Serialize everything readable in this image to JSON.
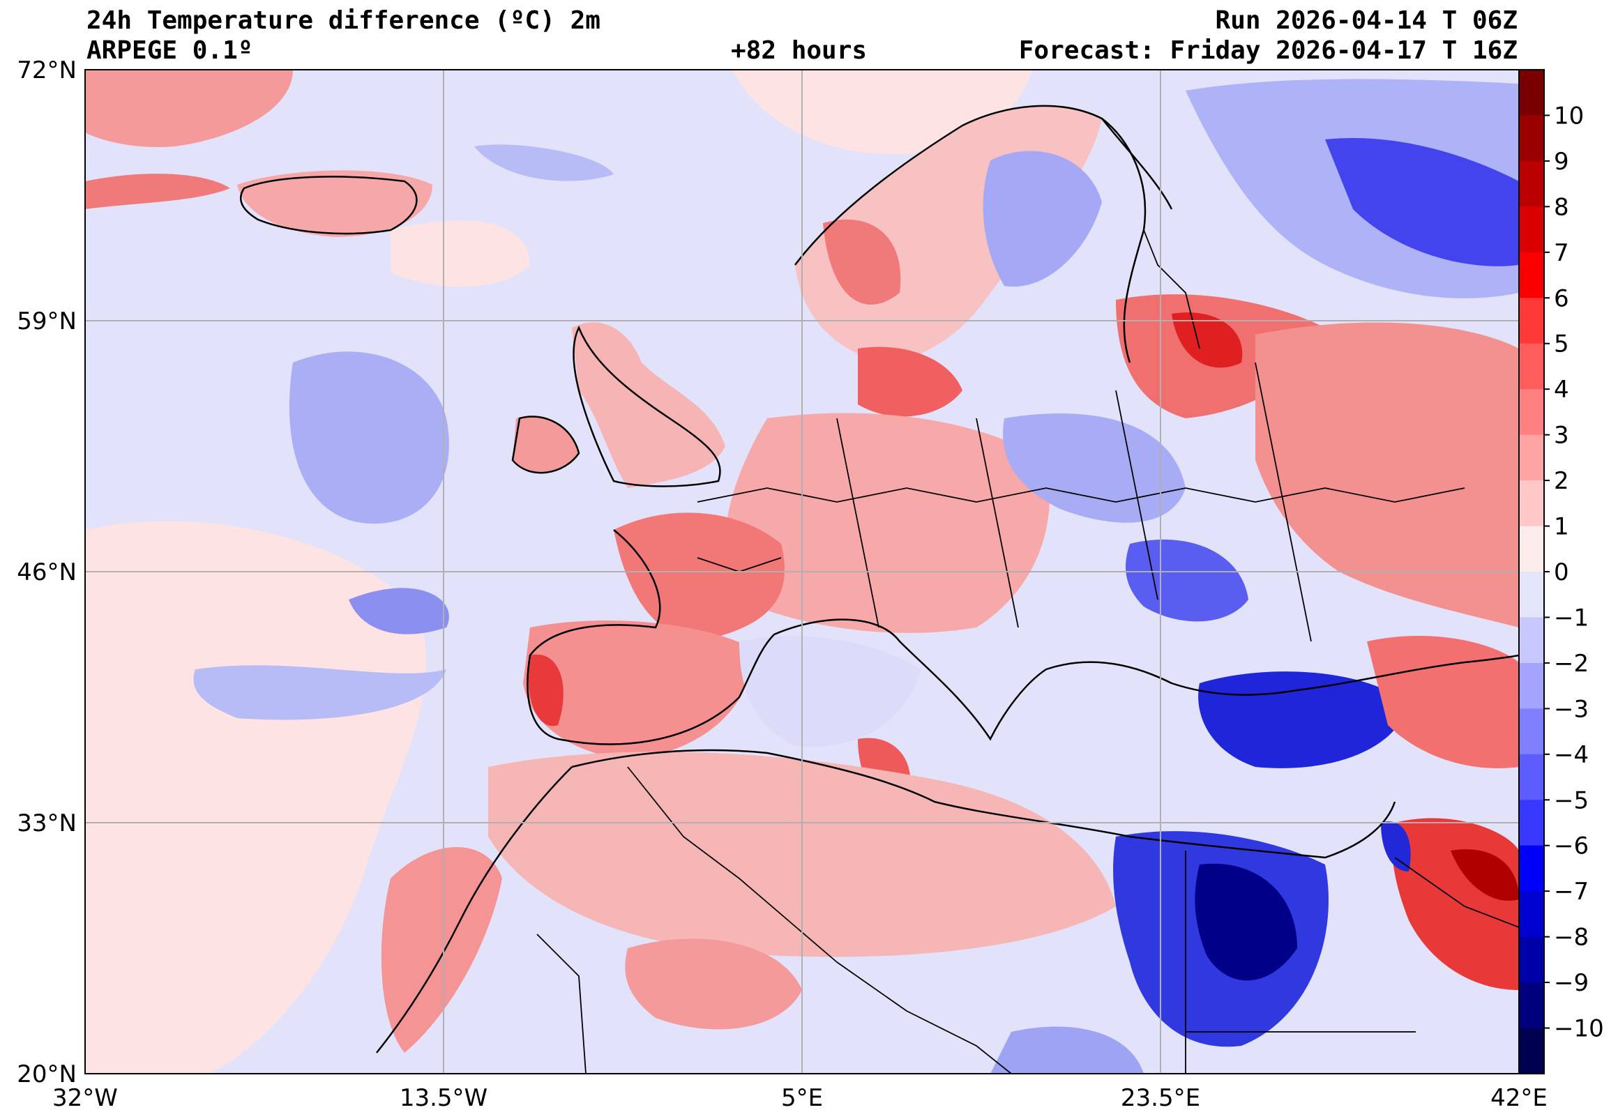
{
  "header": {
    "title_left_1": "24h Temperature difference (ºC) 2m",
    "title_left_2": "ARPEGE 0.1º",
    "title_center": "+82 hours",
    "title_right_1": "Run 2026-04-14 T 06Z",
    "title_right_2": "Forecast: Friday 2026-04-17 T 16Z"
  },
  "map": {
    "lat_labels": [
      "72°N",
      "59°N",
      "46°N",
      "33°N",
      "20°N"
    ],
    "lon_labels": [
      "32°W",
      "13.5°W",
      "5°E",
      "23.5°E",
      "42°E"
    ],
    "lat_range": [
      20,
      72
    ],
    "lon_range": [
      -32,
      42
    ],
    "colors": {
      "neg_pale": "#e1e1fb",
      "pos_pale": "#fde3e3",
      "ocean_base": "#e2e3fb"
    }
  },
  "colorbar": {
    "labels": [
      "10",
      "9",
      "8",
      "7",
      "6",
      "5",
      "4",
      "3",
      "2",
      "1",
      "0",
      "−1",
      "−2",
      "−3",
      "−4",
      "−5",
      "−6",
      "−7",
      "−8",
      "−9",
      "−10"
    ],
    "colors": [
      "#7a0000",
      "#9a0000",
      "#ba0000",
      "#da0000",
      "#fa0000",
      "#ff3838",
      "#ff5c5c",
      "#ff8080",
      "#ffa4a4",
      "#ffc8c8",
      "#fdecec",
      "#e4e4fb",
      "#c8c8ff",
      "#a4a4ff",
      "#8080ff",
      "#5c5cff",
      "#3838ff",
      "#0000fa",
      "#0000d0",
      "#0000a8",
      "#00007e",
      "#000050"
    ]
  }
}
